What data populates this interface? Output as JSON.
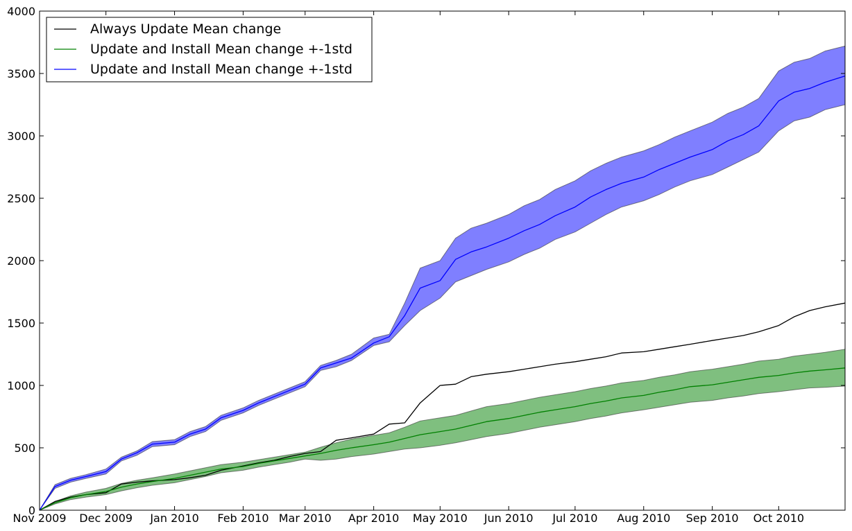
{
  "chart_data": {
    "type": "line",
    "title": "",
    "xlabel": "",
    "ylabel": "",
    "x_tick_labels": [
      "Nov 2009",
      "Dec 2009",
      "Jan 2010",
      "Feb 2010",
      "Mar 2010",
      "Apr 2010",
      "May 2010",
      "Jun 2010",
      "Jul 2010",
      "Aug 2010",
      "Sep 2010",
      "Oct 2010"
    ],
    "x_tick_dates": [
      "2009-11-01",
      "2009-12-01",
      "2010-01-01",
      "2010-02-01",
      "2010-03-01",
      "2010-04-01",
      "2010-05-01",
      "2010-06-01",
      "2010-07-01",
      "2010-08-01",
      "2010-09-01",
      "2010-10-01"
    ],
    "xlim": [
      "2009-11-01",
      "2010-10-31"
    ],
    "ylim": [
      0,
      4000
    ],
    "y_ticks": [
      0,
      500,
      1000,
      1500,
      2000,
      2500,
      3000,
      3500,
      4000
    ],
    "grid": false,
    "legend": {
      "position": "top-left"
    },
    "x": [
      "2009-11-01",
      "2009-11-08",
      "2009-11-15",
      "2009-11-22",
      "2009-12-01",
      "2009-12-08",
      "2009-12-15",
      "2009-12-22",
      "2010-01-01",
      "2010-01-08",
      "2010-01-15",
      "2010-01-22",
      "2010-02-01",
      "2010-02-08",
      "2010-02-15",
      "2010-02-22",
      "2010-03-01",
      "2010-03-08",
      "2010-03-15",
      "2010-03-22",
      "2010-04-01",
      "2010-04-08",
      "2010-04-15",
      "2010-04-22",
      "2010-05-01",
      "2010-05-08",
      "2010-05-15",
      "2010-05-22",
      "2010-06-01",
      "2010-06-08",
      "2010-06-15",
      "2010-06-22",
      "2010-07-01",
      "2010-07-08",
      "2010-07-15",
      "2010-07-22",
      "2010-08-01",
      "2010-08-08",
      "2010-08-15",
      "2010-08-22",
      "2010-09-01",
      "2010-09-08",
      "2010-09-15",
      "2010-09-22",
      "2010-10-01",
      "2010-10-08",
      "2010-10-15",
      "2010-10-22",
      "2010-10-31"
    ],
    "series": [
      {
        "name": "Always Update Mean change",
        "color": "#000000",
        "values": [
          0,
          70,
          105,
          125,
          140,
          210,
          225,
          235,
          245,
          260,
          280,
          320,
          355,
          380,
          400,
          430,
          455,
          470,
          560,
          580,
          610,
          690,
          700,
          860,
          1000,
          1010,
          1070,
          1090,
          1110,
          1130,
          1150,
          1170,
          1190,
          1210,
          1230,
          1260,
          1270,
          1290,
          1310,
          1330,
          1360,
          1380,
          1400,
          1430,
          1480,
          1550,
          1600,
          1630,
          1660
        ]
      },
      {
        "name": "Update and Install Mean change +-1std",
        "color": "#008000",
        "band_color": "#008000",
        "values": [
          0,
          60,
          100,
          125,
          150,
          185,
          210,
          230,
          255,
          280,
          305,
          330,
          350,
          375,
          395,
          415,
          435,
          455,
          480,
          500,
          525,
          545,
          575,
          605,
          630,
          650,
          680,
          710,
          735,
          760,
          785,
          805,
          830,
          855,
          875,
          900,
          920,
          945,
          965,
          990,
          1005,
          1025,
          1045,
          1065,
          1080,
          1100,
          1115,
          1125,
          1140
        ],
        "lower": [
          0,
          50,
          85,
          105,
          125,
          155,
          180,
          200,
          220,
          245,
          270,
          300,
          320,
          345,
          365,
          385,
          410,
          400,
          410,
          430,
          450,
          470,
          490,
          500,
          520,
          540,
          565,
          590,
          615,
          640,
          665,
          685,
          710,
          735,
          755,
          780,
          805,
          825,
          845,
          865,
          880,
          900,
          915,
          935,
          950,
          965,
          980,
          985,
          995
        ],
        "upper": [
          0,
          70,
          115,
          145,
          175,
          215,
          240,
          260,
          290,
          315,
          340,
          365,
          385,
          405,
          425,
          445,
          465,
          505,
          540,
          570,
          600,
          620,
          665,
          715,
          740,
          760,
          795,
          830,
          855,
          880,
          905,
          925,
          950,
          975,
          995,
          1020,
          1040,
          1065,
          1085,
          1110,
          1130,
          1150,
          1170,
          1195,
          1210,
          1235,
          1250,
          1265,
          1290
        ]
      },
      {
        "name": "Update and Install Mean change +-1std",
        "color": "#0000ff",
        "band_color": "#0000ff",
        "values": [
          0,
          190,
          240,
          270,
          310,
          410,
          460,
          530,
          545,
          610,
          650,
          740,
          800,
          860,
          910,
          960,
          1010,
          1140,
          1180,
          1220,
          1340,
          1390,
          1560,
          1780,
          1840,
          2010,
          2070,
          2110,
          2180,
          2240,
          2290,
          2360,
          2430,
          2510,
          2570,
          2620,
          2670,
          2730,
          2780,
          2830,
          2890,
          2960,
          3010,
          3080,
          3280,
          3350,
          3380,
          3430,
          3480
        ],
        "lower": [
          0,
          175,
          225,
          255,
          290,
          395,
          440,
          510,
          525,
          590,
          630,
          720,
          780,
          840,
          890,
          940,
          990,
          1120,
          1150,
          1200,
          1320,
          1350,
          1480,
          1600,
          1700,
          1830,
          1880,
          1930,
          1990,
          2050,
          2100,
          2170,
          2230,
          2300,
          2370,
          2430,
          2480,
          2530,
          2590,
          2640,
          2690,
          2750,
          2810,
          2870,
          3040,
          3120,
          3150,
          3210,
          3250
        ],
        "upper": [
          0,
          205,
          255,
          285,
          330,
          425,
          475,
          550,
          565,
          630,
          670,
          760,
          820,
          880,
          930,
          980,
          1030,
          1160,
          1200,
          1250,
          1380,
          1410,
          1660,
          1940,
          2000,
          2180,
          2260,
          2300,
          2370,
          2440,
          2490,
          2570,
          2640,
          2720,
          2780,
          2830,
          2880,
          2930,
          2990,
          3040,
          3110,
          3180,
          3230,
          3300,
          3520,
          3590,
          3620,
          3680,
          3720
        ]
      }
    ]
  }
}
